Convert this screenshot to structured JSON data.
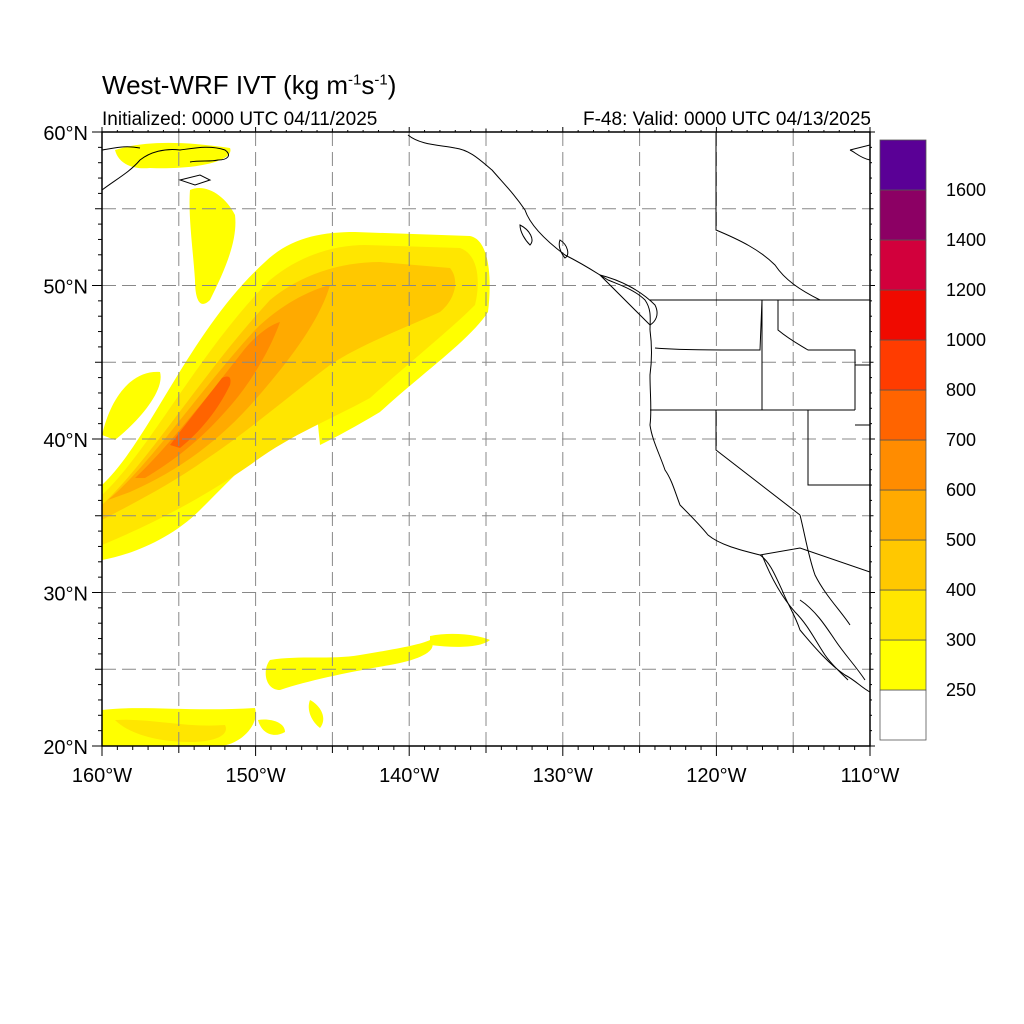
{
  "title": {
    "main": "West-WRF IVT (kg m",
    "exp1": "-1",
    "mid": "s",
    "exp2": "-1",
    "end": ")"
  },
  "subtitle": {
    "initialized": "Initialized: 0000 UTC 04/11/2025",
    "valid": "F-48: Valid: 0000 UTC 04/13/2025"
  },
  "map": {
    "lon_range": [
      -160,
      -110
    ],
    "lat_range": [
      20,
      60
    ],
    "grid": "dashed every 5 degrees",
    "x_tick_labels": [
      {
        "lon": -160,
        "label": "160°W"
      },
      {
        "lon": -150,
        "label": "150°W"
      },
      {
        "lon": -140,
        "label": "140°W"
      },
      {
        "lon": -130,
        "label": "130°W"
      },
      {
        "lon": -120,
        "label": "120°W"
      },
      {
        "lon": -110,
        "label": "110°W"
      }
    ],
    "y_tick_labels": [
      {
        "lat": 60,
        "label": "60°N"
      },
      {
        "lat": 50,
        "label": "50°N"
      },
      {
        "lat": 40,
        "label": "40°N"
      },
      {
        "lat": 30,
        "label": "30°N"
      },
      {
        "lat": 20,
        "label": "20°N"
      }
    ]
  },
  "colorbar": {
    "levels": [
      {
        "label": "",
        "color": "#ffffff"
      },
      {
        "label": "250",
        "color": "#ffff00"
      },
      {
        "label": "300",
        "color": "#ffe600"
      },
      {
        "label": "400",
        "color": "#ffc800"
      },
      {
        "label": "500",
        "color": "#ffaa00"
      },
      {
        "label": "600",
        "color": "#ff8c00"
      },
      {
        "label": "700",
        "color": "#ff6400"
      },
      {
        "label": "800",
        "color": "#ff3c00"
      },
      {
        "label": "1000",
        "color": "#f00a00"
      },
      {
        "label": "1200",
        "color": "#d2003c"
      },
      {
        "label": "1400",
        "color": "#8c0064"
      },
      {
        "label": "1600",
        "color": "#5a0096"
      }
    ]
  }
}
